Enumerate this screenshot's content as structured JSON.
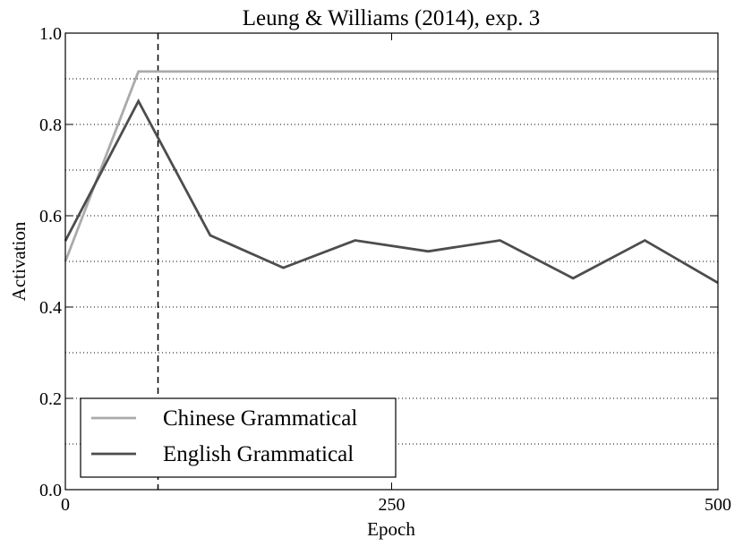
{
  "chart_data": {
    "type": "line",
    "title": "Leung & Williams (2014), exp. 3",
    "xlabel": "Epoch",
    "ylabel": "Activation",
    "x": [
      0,
      56,
      111,
      167,
      222,
      278,
      333,
      389,
      444,
      500
    ],
    "series": [
      {
        "name": "Chinese Grammatical",
        "color": "#aaaaaa",
        "values": [
          0.5,
          0.916,
          0.916,
          0.916,
          0.916,
          0.916,
          0.916,
          0.916,
          0.916,
          0.916
        ]
      },
      {
        "name": "English Grammatical",
        "color": "#4d4d4d",
        "values": [
          0.545,
          0.851,
          0.557,
          0.486,
          0.546,
          0.522,
          0.546,
          0.463,
          0.546,
          0.453
        ]
      }
    ],
    "xlim": [
      0,
      500
    ],
    "xticks": [
      0,
      250,
      500
    ],
    "ylim": [
      0,
      1
    ],
    "yticks": [
      {
        "value": 0,
        "label": "0.0"
      },
      0.2,
      0.4,
      0.6,
      0.8,
      {
        "value": 1,
        "label": "1.0"
      }
    ],
    "minor_yticks": [
      0.1,
      0.3,
      0.5,
      0.7,
      0.9
    ],
    "vline": 71,
    "grid": true,
    "legend": "lower left"
  }
}
